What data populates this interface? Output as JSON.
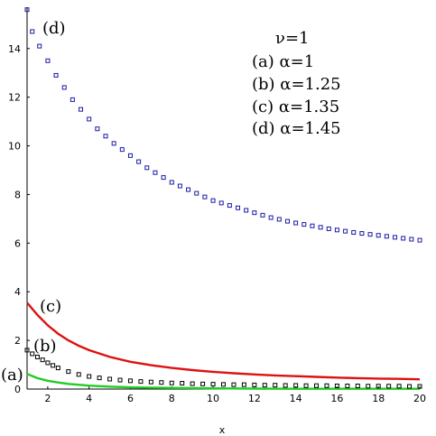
{
  "chart_data": {
    "type": "scatter",
    "title": "",
    "xlabel": "x",
    "ylabel": "",
    "xlim": [
      1,
      20
    ],
    "ylim": [
      0,
      15.7
    ],
    "grid": false,
    "x_ticks": [
      2,
      4,
      6,
      8,
      10,
      12,
      14,
      16,
      18,
      20
    ],
    "y_ticks": [
      0,
      2,
      4,
      6,
      8,
      10,
      12,
      14
    ],
    "legend": {
      "placement": "top-right",
      "lines": [
        "ν=1",
        "(a) α=1",
        "(b) α=1.25",
        "(c) α=1.35",
        "(d) α=1.45"
      ]
    },
    "series": [
      {
        "curve_label": "(a)",
        "style": "line",
        "color": "#22cc22",
        "x": [
          1,
          1.5,
          2,
          2.5,
          3,
          4,
          5,
          6,
          7,
          8,
          9,
          10,
          12,
          14,
          16,
          18,
          20
        ],
        "y": [
          0.62,
          0.45,
          0.34,
          0.27,
          0.21,
          0.14,
          0.1,
          0.07,
          0.06,
          0.05,
          0.04,
          0.03,
          0.02,
          0.01,
          0.01,
          0.01,
          0.01
        ]
      },
      {
        "curve_label": "(b)",
        "style": "markers",
        "color": "#000000",
        "x": [
          1,
          1.25,
          1.5,
          1.75,
          2,
          2.25,
          2.5,
          3,
          3.5,
          4,
          4.5,
          5,
          5.5,
          6,
          6.5,
          7,
          7.5,
          8,
          8.5,
          9,
          9.5,
          10,
          10.5,
          11,
          11.5,
          12,
          12.5,
          13,
          13.5,
          14,
          14.5,
          15,
          15.5,
          16,
          16.5,
          17,
          17.5,
          18,
          18.5,
          19,
          19.5,
          20
        ],
        "y": [
          1.6,
          1.45,
          1.32,
          1.2,
          1.08,
          0.97,
          0.87,
          0.72,
          0.6,
          0.52,
          0.46,
          0.41,
          0.37,
          0.34,
          0.31,
          0.29,
          0.27,
          0.25,
          0.24,
          0.22,
          0.21,
          0.2,
          0.19,
          0.18,
          0.18,
          0.17,
          0.16,
          0.16,
          0.15,
          0.15,
          0.14,
          0.14,
          0.14,
          0.13,
          0.13,
          0.13,
          0.12,
          0.12,
          0.12,
          0.12,
          0.11,
          0.11
        ]
      },
      {
        "curve_label": "(c)",
        "style": "line",
        "color": "#dd1111",
        "x": [
          1,
          1.5,
          2,
          2.5,
          3,
          3.5,
          4,
          5,
          6,
          7,
          8,
          9,
          10,
          11,
          12,
          13,
          14,
          15,
          16,
          17,
          18,
          19,
          20
        ],
        "y": [
          3.55,
          3.05,
          2.62,
          2.28,
          2.0,
          1.78,
          1.6,
          1.32,
          1.12,
          0.98,
          0.87,
          0.78,
          0.71,
          0.65,
          0.6,
          0.56,
          0.53,
          0.5,
          0.47,
          0.45,
          0.43,
          0.42,
          0.4
        ]
      },
      {
        "curve_label": "(d)",
        "style": "markers",
        "color": "#1a1aa8",
        "x": [
          1,
          1.25,
          1.6,
          2.0,
          2.4,
          2.8,
          3.2,
          3.6,
          4.0,
          4.4,
          4.8,
          5.2,
          5.6,
          6.0,
          6.4,
          6.8,
          7.2,
          7.6,
          8.0,
          8.4,
          8.8,
          9.2,
          9.6,
          10.0,
          10.4,
          10.8,
          11.2,
          11.6,
          12.0,
          12.4,
          12.8,
          13.2,
          13.6,
          14.0,
          14.4,
          14.8,
          15.2,
          15.6,
          16.0,
          16.4,
          16.8,
          17.2,
          17.6,
          18.0,
          18.4,
          18.8,
          19.2,
          19.6,
          20.0
        ],
        "y": [
          15.6,
          14.7,
          14.1,
          13.5,
          12.9,
          12.4,
          11.9,
          11.5,
          11.1,
          10.7,
          10.4,
          10.1,
          9.85,
          9.6,
          9.35,
          9.1,
          8.9,
          8.7,
          8.5,
          8.35,
          8.2,
          8.05,
          7.9,
          7.75,
          7.65,
          7.55,
          7.45,
          7.35,
          7.25,
          7.15,
          7.05,
          6.98,
          6.9,
          6.83,
          6.77,
          6.71,
          6.65,
          6.59,
          6.54,
          6.49,
          6.44,
          6.4,
          6.36,
          6.32,
          6.28,
          6.24,
          6.2,
          6.16,
          6.12
        ]
      }
    ]
  }
}
